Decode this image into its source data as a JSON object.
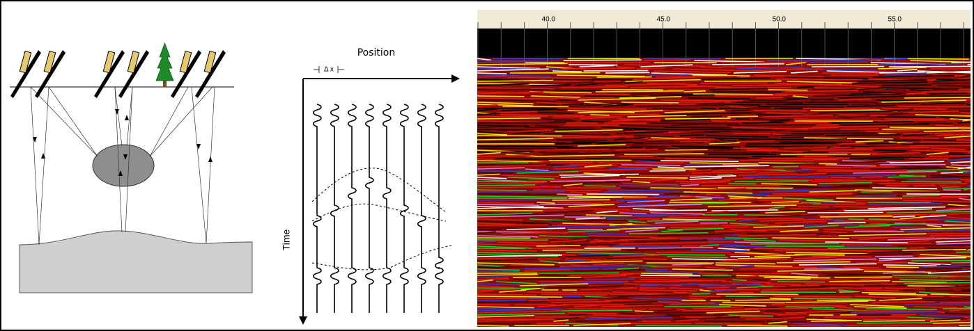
{
  "labels": {
    "position": "Position",
    "delta_x": "Δ x",
    "time": "Time"
  },
  "ruler": {
    "labels": [
      "40.0",
      "45.0",
      "50.0",
      "55.0"
    ]
  }
}
